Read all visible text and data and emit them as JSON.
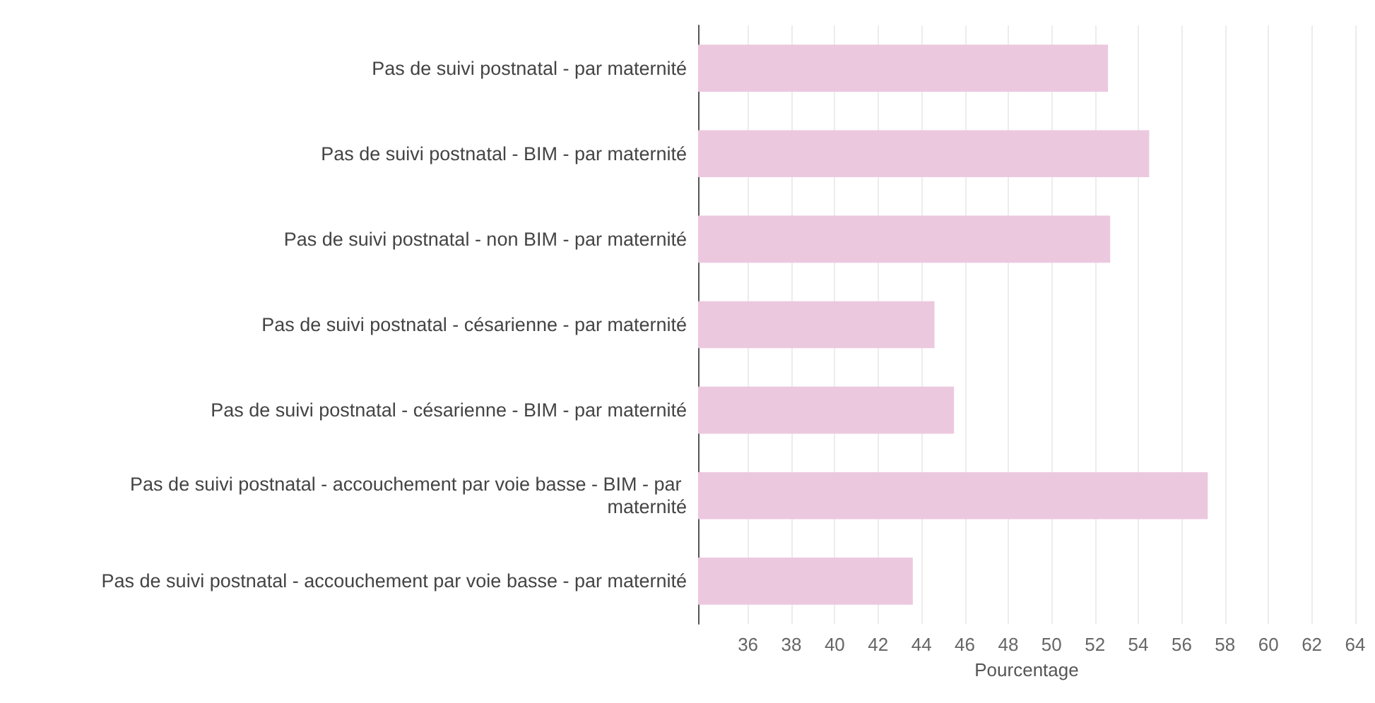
{
  "chart_data": {
    "type": "bar",
    "orientation": "horizontal",
    "xlabel": "Pourcentage",
    "categories": [
      "Pas de suivi postnatal - par maternité",
      "Pas de suivi postnatal - BIM - par maternité",
      "Pas de suivi postnatal - non BIM - par maternité",
      "Pas de suivi postnatal - césarienne - par maternité",
      "Pas de suivi postnatal - césarienne - BIM - par maternité",
      "Pas de suivi postnatal - accouchement par voie basse - BIM - par maternité",
      "Pas de suivi postnatal - accouchement par voie basse - par maternité"
    ],
    "values": [
      52.6,
      54.5,
      52.7,
      44.6,
      45.5,
      57.2,
      43.6
    ],
    "color": "#ecc8df",
    "xlim": [
      33.7,
      64
    ],
    "xticks": [
      36,
      38,
      40,
      42,
      44,
      46,
      48,
      50,
      52,
      54,
      56,
      58,
      60,
      62,
      64
    ],
    "grid": "x"
  }
}
